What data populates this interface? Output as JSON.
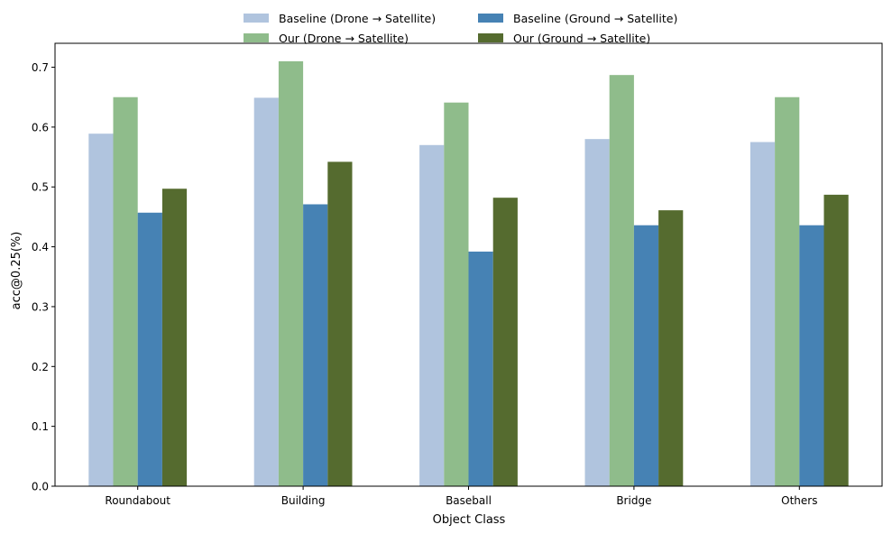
{
  "chart_data": {
    "type": "bar",
    "xlabel": "Object Class",
    "ylabel": "acc@0.25(%)",
    "categories": [
      "Roundabout",
      "Building",
      "Baseball",
      "Bridge",
      "Others"
    ],
    "ylim": [
      0,
      0.74
    ],
    "yticks": [
      "0.0",
      "0.1",
      "0.2",
      "0.3",
      "0.4",
      "0.5",
      "0.6",
      "0.7"
    ],
    "grid": false,
    "legend_position": "top-center",
    "series": [
      {
        "name": "Baseline (Drone → Satellite)",
        "color": "#b0c4de",
        "values": [
          0.589,
          0.649,
          0.57,
          0.58,
          0.575
        ]
      },
      {
        "name": "Our (Drone → Satellite)",
        "color": "#8fbc8b",
        "values": [
          0.65,
          0.71,
          0.641,
          0.687,
          0.65
        ]
      },
      {
        "name": "Baseline (Ground → Satellite)",
        "color": "#4682b4",
        "values": [
          0.457,
          0.471,
          0.392,
          0.436,
          0.436
        ]
      },
      {
        "name": "Our (Ground → Satellite)",
        "color": "#556b2f",
        "values": [
          0.497,
          0.542,
          0.482,
          0.461,
          0.487
        ]
      }
    ]
  }
}
